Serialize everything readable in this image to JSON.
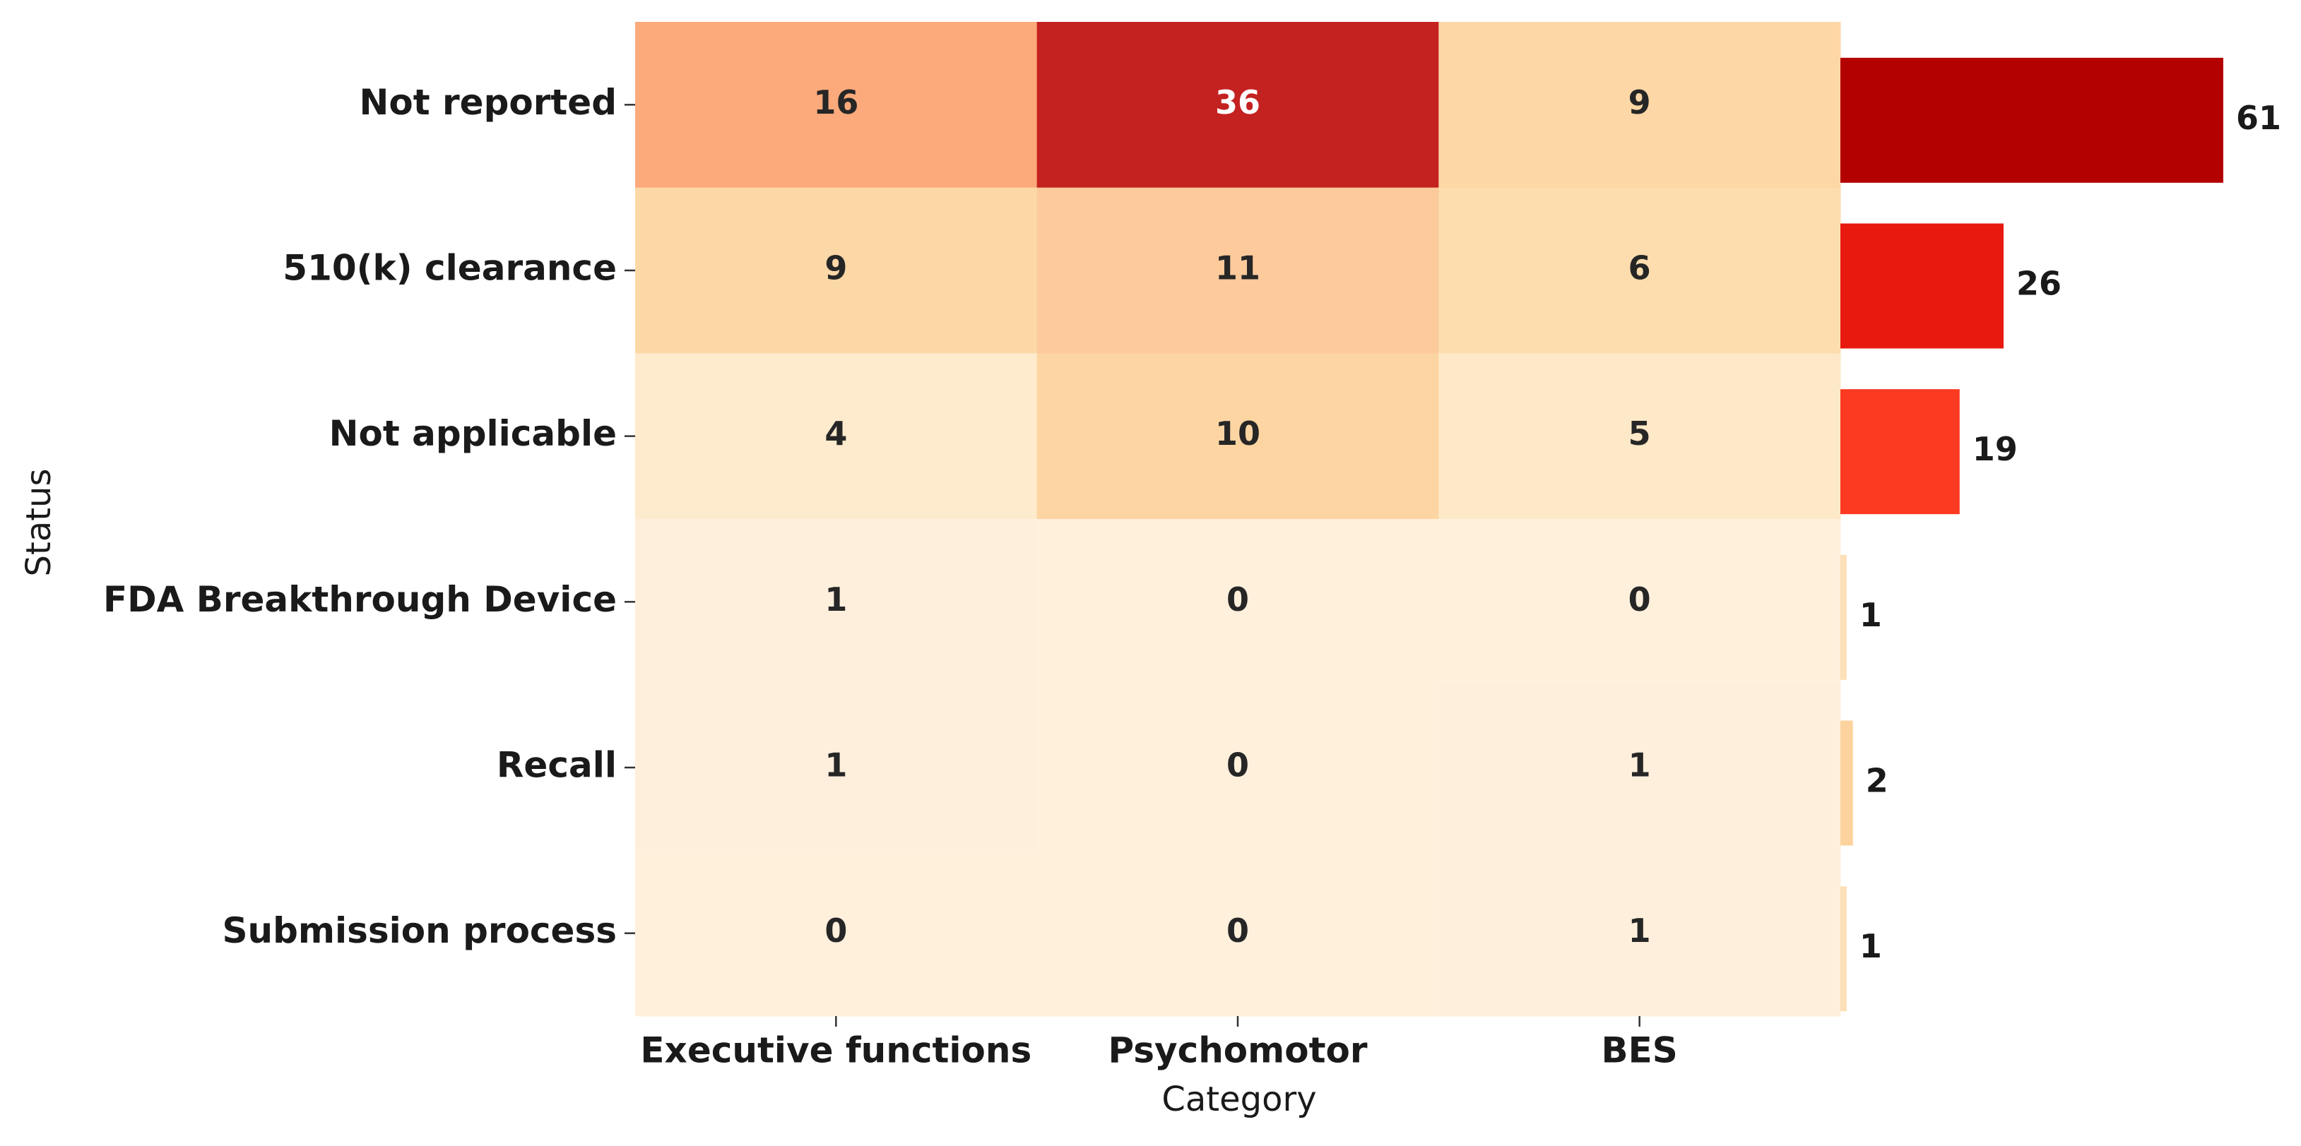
{
  "chart_data": [
    {
      "type": "heatmap",
      "x_label": "Category",
      "y_label": "Status",
      "x_categories": [
        "Executive functions",
        "Psychomotor",
        "BES"
      ],
      "y_categories": [
        "Not reported",
        "510(k) clearance",
        "Not applicable",
        "FDA Breakthrough Device",
        "Recall",
        "Submission process"
      ],
      "values": [
        [
          16,
          36,
          9
        ],
        [
          9,
          11,
          6
        ],
        [
          4,
          10,
          5
        ],
        [
          1,
          0,
          0
        ],
        [
          1,
          0,
          1
        ],
        [
          0,
          0,
          1
        ]
      ],
      "colors": [
        [
          "#fcaa7b",
          "#c42121",
          "#fdd7a6"
        ],
        [
          "#fdd8a7",
          "#fdca9b",
          "#fddcad"
        ],
        [
          "#feeacc",
          "#fdd5a3",
          "#fde8c7"
        ],
        [
          "#feefdc",
          "#fff0dc",
          "#fff0dc"
        ],
        [
          "#feefdc",
          "#fff0dc",
          "#feefdc"
        ],
        [
          "#fff0dc",
          "#fff0dc",
          "#feefdc"
        ]
      ]
    },
    {
      "type": "bar",
      "orientation": "horizontal",
      "values": [
        61,
        26,
        19,
        1,
        2,
        1
      ],
      "colors": [
        "#b30000",
        "#e8190f",
        "#fc3a22",
        "#fde0b8",
        "#fdd39d",
        "#fde0b8"
      ]
    }
  ]
}
